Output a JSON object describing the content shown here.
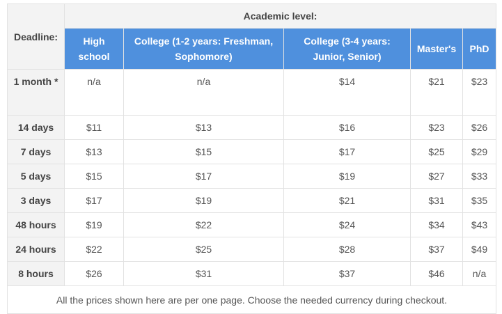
{
  "deadline_header": "Deadline:",
  "academic_level_header": "Academic level:",
  "levels": [
    "High school",
    "College (1-2 years: Freshman, Sophomore)",
    "College (3-4 years: Junior, Senior)",
    "Master's",
    "PhD"
  ],
  "rows": [
    {
      "deadline": "1 month *",
      "prices": [
        "n/a",
        "n/a",
        "$14",
        "$21",
        "$23"
      ]
    },
    {
      "deadline": "14 days",
      "prices": [
        "$11",
        "$13",
        "$16",
        "$23",
        "$26"
      ]
    },
    {
      "deadline": "7 days",
      "prices": [
        "$13",
        "$15",
        "$17",
        "$25",
        "$29"
      ]
    },
    {
      "deadline": "5 days",
      "prices": [
        "$15",
        "$17",
        "$19",
        "$27",
        "$33"
      ]
    },
    {
      "deadline": "3 days",
      "prices": [
        "$17",
        "$19",
        "$21",
        "$31",
        "$35"
      ]
    },
    {
      "deadline": "48 hours",
      "prices": [
        "$19",
        "$22",
        "$24",
        "$34",
        "$43"
      ]
    },
    {
      "deadline": "24 hours",
      "prices": [
        "$22",
        "$25",
        "$28",
        "$37",
        "$49"
      ]
    },
    {
      "deadline": "8 hours",
      "prices": [
        "$26",
        "$31",
        "$37",
        "$46",
        "n/a"
      ]
    }
  ],
  "footer_note": "All the prices shown here are per one page. Choose the needed currency during checkout.",
  "colors": {
    "header_blue": "#4f90dd",
    "header_gray": "#f3f3f3",
    "border": "#e2e2e2",
    "text": "#555555"
  }
}
